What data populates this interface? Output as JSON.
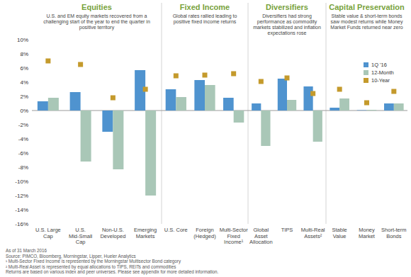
{
  "chart_data": {
    "type": "bar",
    "categories": [
      "U.S. Large Cap",
      "U.S. Mid-Small Cap",
      "Non-U.S. Developed",
      "Emerging Markets",
      "U.S. Core",
      "Foreign (Hedged)",
      "Multi-Sector Fixed Income¹",
      "Global Asset Allocation",
      "TIPS",
      "Multi-Real Assets²",
      "Stable Value",
      "Money Market",
      "Short-term Bonds"
    ],
    "groups": [
      {
        "title": "Equities",
        "subtitle": "U.S. and EM equity markets recovered from a challenging start of the year to end the quarter in positive territory",
        "span": 4
      },
      {
        "title": "Fixed Income",
        "subtitle": "Global rates rallied leading to positive fixed income returns",
        "span": 3
      },
      {
        "title": "Diversifiers",
        "subtitle": "Diversifiers had strong performance as commodity markets stabilized and inflation expectations rose",
        "span": 3
      },
      {
        "title": "Capital Preservation",
        "subtitle": "Stable value & short-term bonds saw modest returns while Money Market Funds returned near zero",
        "span": 3
      }
    ],
    "series": [
      {
        "name": "1Q '16",
        "color": "#4f93cf",
        "values": [
          1.3,
          2.6,
          -3.0,
          5.7,
          3.0,
          4.3,
          1.8,
          1.0,
          4.5,
          3.4,
          0.4,
          0.05,
          1.0
        ]
      },
      {
        "name": "12-Month",
        "color": "#a9c7b7",
        "values": [
          1.8,
          -7.2,
          -8.3,
          -12.0,
          1.9,
          3.6,
          -1.7,
          -5.0,
          1.5,
          -4.4,
          1.7,
          0.1,
          1.0
        ]
      },
      {
        "name": "10-Year",
        "color": "#c49a2c",
        "type": "scatter",
        "marker": "square",
        "values": [
          7.0,
          6.5,
          1.8,
          3.0,
          4.9,
          5.0,
          5.2,
          4.1,
          4.6,
          2.4,
          3.0,
          1.1,
          2.7
        ]
      }
    ],
    "ylim": [
      -16,
      10
    ],
    "yticks": [
      {
        "value": 10,
        "label": "10%"
      },
      {
        "value": 8,
        "label": "8%"
      },
      {
        "value": 6,
        "label": "6%"
      },
      {
        "value": 4,
        "label": "4%"
      },
      {
        "value": 2,
        "label": "2%"
      },
      {
        "value": 0,
        "label": "0%"
      },
      {
        "value": -2,
        "label": "-2%"
      },
      {
        "value": -4,
        "label": "-4%"
      },
      {
        "value": -6,
        "label": "-6%"
      },
      {
        "value": -8,
        "label": "-8%"
      },
      {
        "value": -10,
        "label": "-10%"
      },
      {
        "value": -12,
        "label": "-12%"
      },
      {
        "value": -14,
        "label": "-14%"
      },
      {
        "value": -16,
        "label": "-16%"
      }
    ],
    "grid": false,
    "legend": "upper right",
    "notes": [
      "As of 31 March 2016",
      "Source: PIMCO, Bloomberg, Morningstar, Lipper, Hueler Analytics",
      "¹ Multi-Sector Fixed Income is represented by the Morningstar Multisector Bond category",
      "² Multi-Real Asset is represented by equal allocations to TIPS, REITs and commodities",
      "Returns are based on various index and peer universes. Please see appendix for more detailed information."
    ]
  }
}
